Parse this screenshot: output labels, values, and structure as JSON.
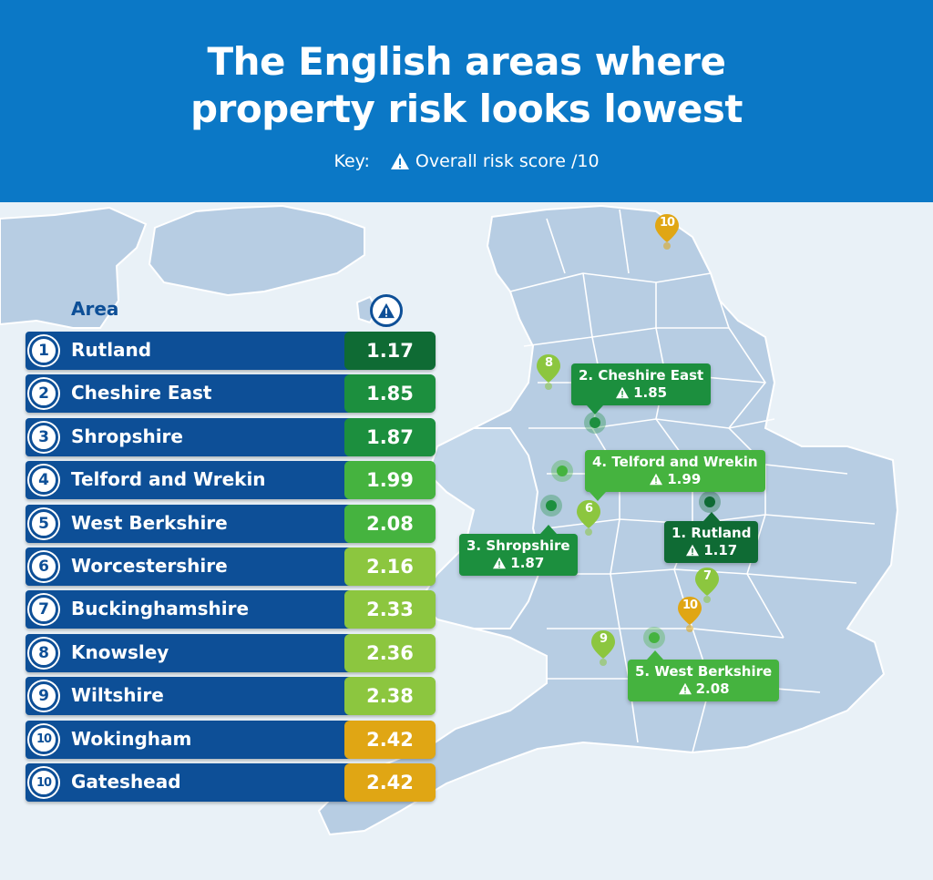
{
  "header": {
    "title_line1": "The English areas where",
    "title_line2": "property risk looks lowest",
    "key_label": "Key:",
    "key_text": "Overall risk score /10"
  },
  "table": {
    "column_area": "Area",
    "rows": [
      {
        "rank": "1",
        "name": "Rutland",
        "score": "1.17",
        "color": "#0f6b34"
      },
      {
        "rank": "2",
        "name": "Cheshire East",
        "score": "1.85",
        "color": "#1c8f3e"
      },
      {
        "rank": "3",
        "name": "Shropshire",
        "score": "1.87",
        "color": "#1c8f3e"
      },
      {
        "rank": "4",
        "name": "Telford and Wrekin",
        "score": "1.99",
        "color": "#45b33f"
      },
      {
        "rank": "5",
        "name": "West Berkshire",
        "score": "2.08",
        "color": "#45b33f"
      },
      {
        "rank": "6",
        "name": "Worcestershire",
        "score": "2.16",
        "color": "#8cc63f"
      },
      {
        "rank": "7",
        "name": "Buckinghamshire",
        "score": "2.33",
        "color": "#8cc63f"
      },
      {
        "rank": "8",
        "name": "Knowsley",
        "score": "2.36",
        "color": "#8cc63f"
      },
      {
        "rank": "9",
        "name": "Wiltshire",
        "score": "2.38",
        "color": "#8cc63f"
      },
      {
        "rank": "10",
        "name": "Wokingham",
        "score": "2.42",
        "color": "#e0a614"
      },
      {
        "rank": "10",
        "name": "Gateshead",
        "score": "2.42",
        "color": "#e0a614"
      }
    ]
  },
  "callouts": [
    {
      "label": "2. Cheshire East",
      "score": "1.85",
      "color": "#1c8f3e"
    },
    {
      "label": "4. Telford and Wrekin",
      "score": "1.99",
      "color": "#45b33f"
    },
    {
      "label": "1. Rutland",
      "score": "1.17",
      "color": "#0f6b34"
    },
    {
      "label": "3. Shropshire",
      "score": "1.87",
      "color": "#1c8f3e"
    },
    {
      "label": "5. West Berkshire",
      "score": "2.08",
      "color": "#45b33f"
    }
  ],
  "pins": [
    {
      "label": "10",
      "color": "#e0a614"
    },
    {
      "label": "8",
      "color": "#8cc63f"
    },
    {
      "label": "6",
      "color": "#8cc63f"
    },
    {
      "label": "7",
      "color": "#8cc63f"
    },
    {
      "label": "10",
      "color": "#e0a614"
    },
    {
      "label": "9",
      "color": "#8cc63f"
    }
  ],
  "icons": {
    "risk": "warning-triangle-icon",
    "pin": "map-pin-icon"
  },
  "colors": {
    "header_bg": "#0b78c6",
    "row_bg": "#0d4f97",
    "land": "#b7cde3",
    "background": "#e9f1f7"
  }
}
